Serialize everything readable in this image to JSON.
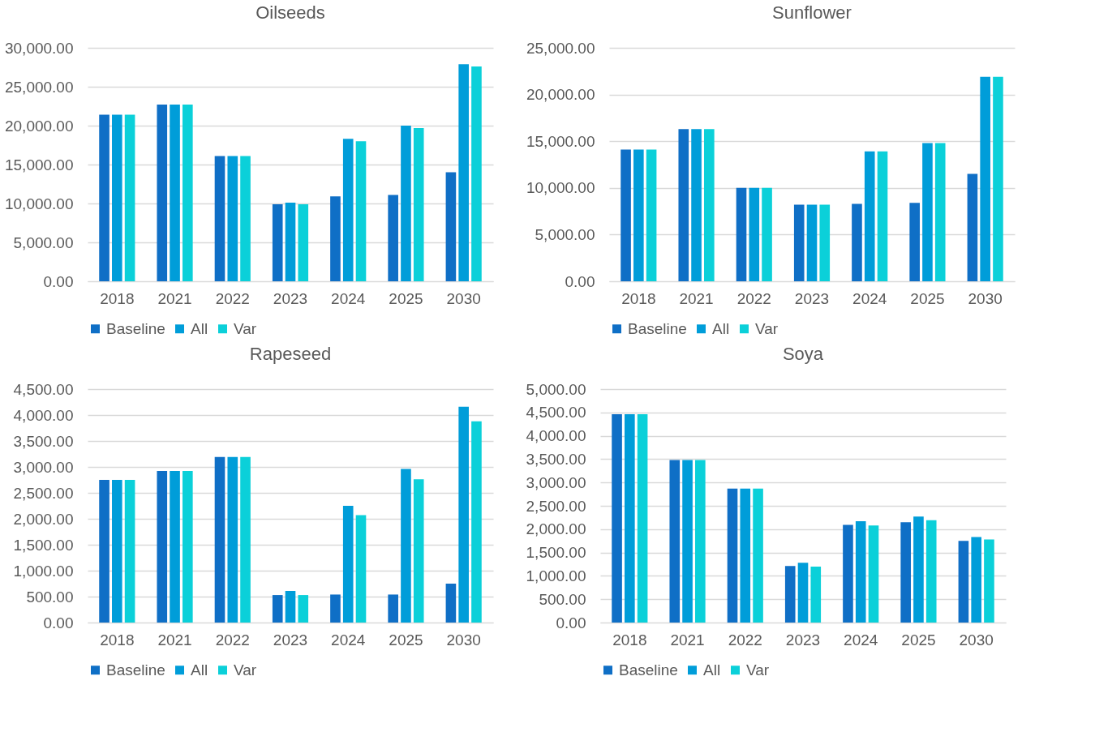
{
  "chart_data": [
    {
      "type": "bar",
      "title": "Oilseeds",
      "categories": [
        "2018",
        "2021",
        "2022",
        "2023",
        "2024",
        "2025",
        "2030"
      ],
      "ylim": [
        0,
        30000
      ],
      "yticks": [
        {
          "value": 0,
          "label": "0.00"
        },
        {
          "value": 5000,
          "label": "5,000.00"
        },
        {
          "value": 10000,
          "label": "10,000.00"
        },
        {
          "value": 15000,
          "label": "15,000.00"
        },
        {
          "value": 20000,
          "label": "20,000.00"
        },
        {
          "value": 25000,
          "label": "25,000.00"
        },
        {
          "value": 30000,
          "label": "30,000.00"
        }
      ],
      "grid": "y",
      "legend": "bottom",
      "series": [
        {
          "name": "Baseline",
          "color": "#0f6fc6",
          "values": [
            21400,
            22700,
            16100,
            9900,
            10900,
            11100,
            14000
          ]
        },
        {
          "name": "All",
          "color": "#009dd9",
          "values": [
            21400,
            22700,
            16100,
            10100,
            18300,
            20000,
            27900
          ]
        },
        {
          "name": "Var",
          "color": "#0bd0d9",
          "values": [
            21400,
            22700,
            16100,
            9900,
            18000,
            19700,
            27600
          ]
        }
      ]
    },
    {
      "type": "bar",
      "title": "Sunflower",
      "categories": [
        "2018",
        "2021",
        "2022",
        "2023",
        "2024",
        "2025",
        "2030"
      ],
      "ylim": [
        0,
        25000
      ],
      "yticks": [
        {
          "value": 0,
          "label": "0.00"
        },
        {
          "value": 5000,
          "label": "5,000.00"
        },
        {
          "value": 10000,
          "label": "10,000.00"
        },
        {
          "value": 15000,
          "label": "15,000.00"
        },
        {
          "value": 20000,
          "label": "20,000.00"
        },
        {
          "value": 25000,
          "label": "25,000.00"
        }
      ],
      "grid": "y",
      "legend": "bottom",
      "series": [
        {
          "name": "Baseline",
          "color": "#0f6fc6",
          "values": [
            14100,
            16300,
            10000,
            8200,
            8300,
            8400,
            11500
          ]
        },
        {
          "name": "All",
          "color": "#009dd9",
          "values": [
            14100,
            16300,
            10000,
            8200,
            13900,
            14800,
            21900
          ]
        },
        {
          "name": "Var",
          "color": "#0bd0d9",
          "values": [
            14100,
            16300,
            10000,
            8200,
            13900,
            14800,
            21900
          ]
        }
      ]
    },
    {
      "type": "bar",
      "title": "Rapeseed",
      "categories": [
        "2018",
        "2021",
        "2022",
        "2023",
        "2024",
        "2025",
        "2030"
      ],
      "ylim": [
        0,
        4500
      ],
      "yticks": [
        {
          "value": 0,
          "label": "0.00"
        },
        {
          "value": 500,
          "label": "500.00"
        },
        {
          "value": 1000,
          "label": "1,000.00"
        },
        {
          "value": 1500,
          "label": "1,500.00"
        },
        {
          "value": 2000,
          "label": "2,000.00"
        },
        {
          "value": 2500,
          "label": "2,500.00"
        },
        {
          "value": 3000,
          "label": "3,000.00"
        },
        {
          "value": 3500,
          "label": "3,500.00"
        },
        {
          "value": 4000,
          "label": "4,000.00"
        },
        {
          "value": 4500,
          "label": "4,500.00"
        }
      ],
      "grid": "y",
      "legend": "bottom",
      "series": [
        {
          "name": "Baseline",
          "color": "#0f6fc6",
          "values": [
            2750,
            2920,
            3190,
            530,
            540,
            540,
            750
          ]
        },
        {
          "name": "All",
          "color": "#009dd9",
          "values": [
            2750,
            2920,
            3190,
            610,
            2250,
            2960,
            4160
          ]
        },
        {
          "name": "Var",
          "color": "#0bd0d9",
          "values": [
            2750,
            2920,
            3190,
            530,
            2070,
            2760,
            3880
          ]
        }
      ]
    },
    {
      "type": "bar",
      "title": "Soya",
      "categories": [
        "2018",
        "2021",
        "2022",
        "2023",
        "2024",
        "2025",
        "2030"
      ],
      "ylim": [
        0,
        5000
      ],
      "yticks": [
        {
          "value": 0,
          "label": "0.00"
        },
        {
          "value": 500,
          "label": "500.00"
        },
        {
          "value": 1000,
          "label": "1,000.00"
        },
        {
          "value": 1500,
          "label": "1,500.00"
        },
        {
          "value": 2000,
          "label": "2,000.00"
        },
        {
          "value": 2500,
          "label": "2,500.00"
        },
        {
          "value": 3000,
          "label": "3,000.00"
        },
        {
          "value": 3500,
          "label": "3,500.00"
        },
        {
          "value": 4000,
          "label": "4,000.00"
        },
        {
          "value": 4500,
          "label": "4,500.00"
        },
        {
          "value": 5000,
          "label": "5,000.00"
        }
      ],
      "grid": "y",
      "legend": "bottom",
      "series": [
        {
          "name": "Baseline",
          "color": "#0f6fc6",
          "values": [
            4460,
            3480,
            2870,
            1210,
            2090,
            2150,
            1750
          ]
        },
        {
          "name": "All",
          "color": "#009dd9",
          "values": [
            4460,
            3480,
            2870,
            1280,
            2170,
            2270,
            1830
          ]
        },
        {
          "name": "Var",
          "color": "#0bd0d9",
          "values": [
            4460,
            3480,
            2870,
            1200,
            2080,
            2190,
            1780
          ]
        }
      ]
    }
  ]
}
